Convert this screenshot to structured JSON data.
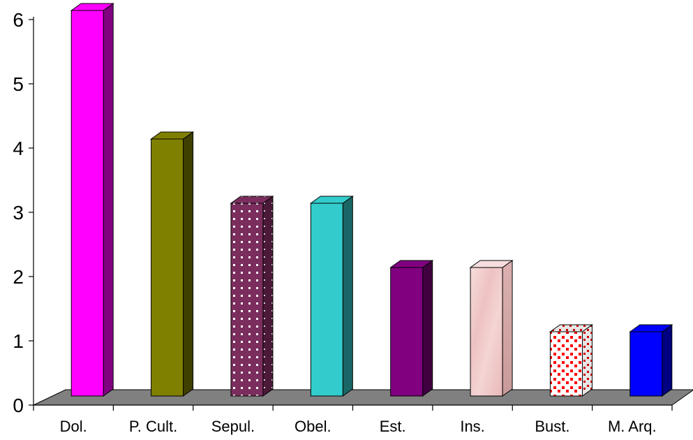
{
  "chart_data": {
    "type": "bar",
    "title": "",
    "xlabel": "",
    "ylabel": "",
    "categories": [
      "Dol.",
      "P. Cult.",
      "Sepul.",
      "Obel.",
      "Est.",
      "Ins.",
      "Bust.",
      "M. Arq."
    ],
    "values": [
      6,
      4,
      3,
      3,
      2,
      2,
      1,
      1
    ],
    "ylim": [
      0,
      6
    ],
    "yticks": [
      "0",
      "1",
      "2",
      "3",
      "4",
      "5",
      "6"
    ],
    "grid": false,
    "legend": "none",
    "floor_color": "#808080",
    "bars": [
      {
        "front": "#ff00ff",
        "side": "#800080",
        "top": "#ff00ff",
        "pattern": "solid"
      },
      {
        "front": "#808000",
        "side": "#3f3f00",
        "top": "#808000",
        "pattern": "solid"
      },
      {
        "front": "#7b2d5e",
        "side": "#4a1a38",
        "top": "#7b2d5e",
        "pattern": "dots"
      },
      {
        "front": "#33cccc",
        "side": "#1a6666",
        "top": "#33cccc",
        "pattern": "solid"
      },
      {
        "front": "#800080",
        "side": "#400040",
        "top": "#800080",
        "pattern": "solid"
      },
      {
        "front": "#f2c9c9",
        "side": "#d8a8a8",
        "top": "#f7dede",
        "pattern": "texture"
      },
      {
        "front": "#ffffff",
        "side": "#ffffff",
        "top": "#ffffff",
        "pattern": "red-squares"
      },
      {
        "front": "#0000ff",
        "side": "#000080",
        "top": "#0000ff",
        "pattern": "solid"
      }
    ]
  }
}
